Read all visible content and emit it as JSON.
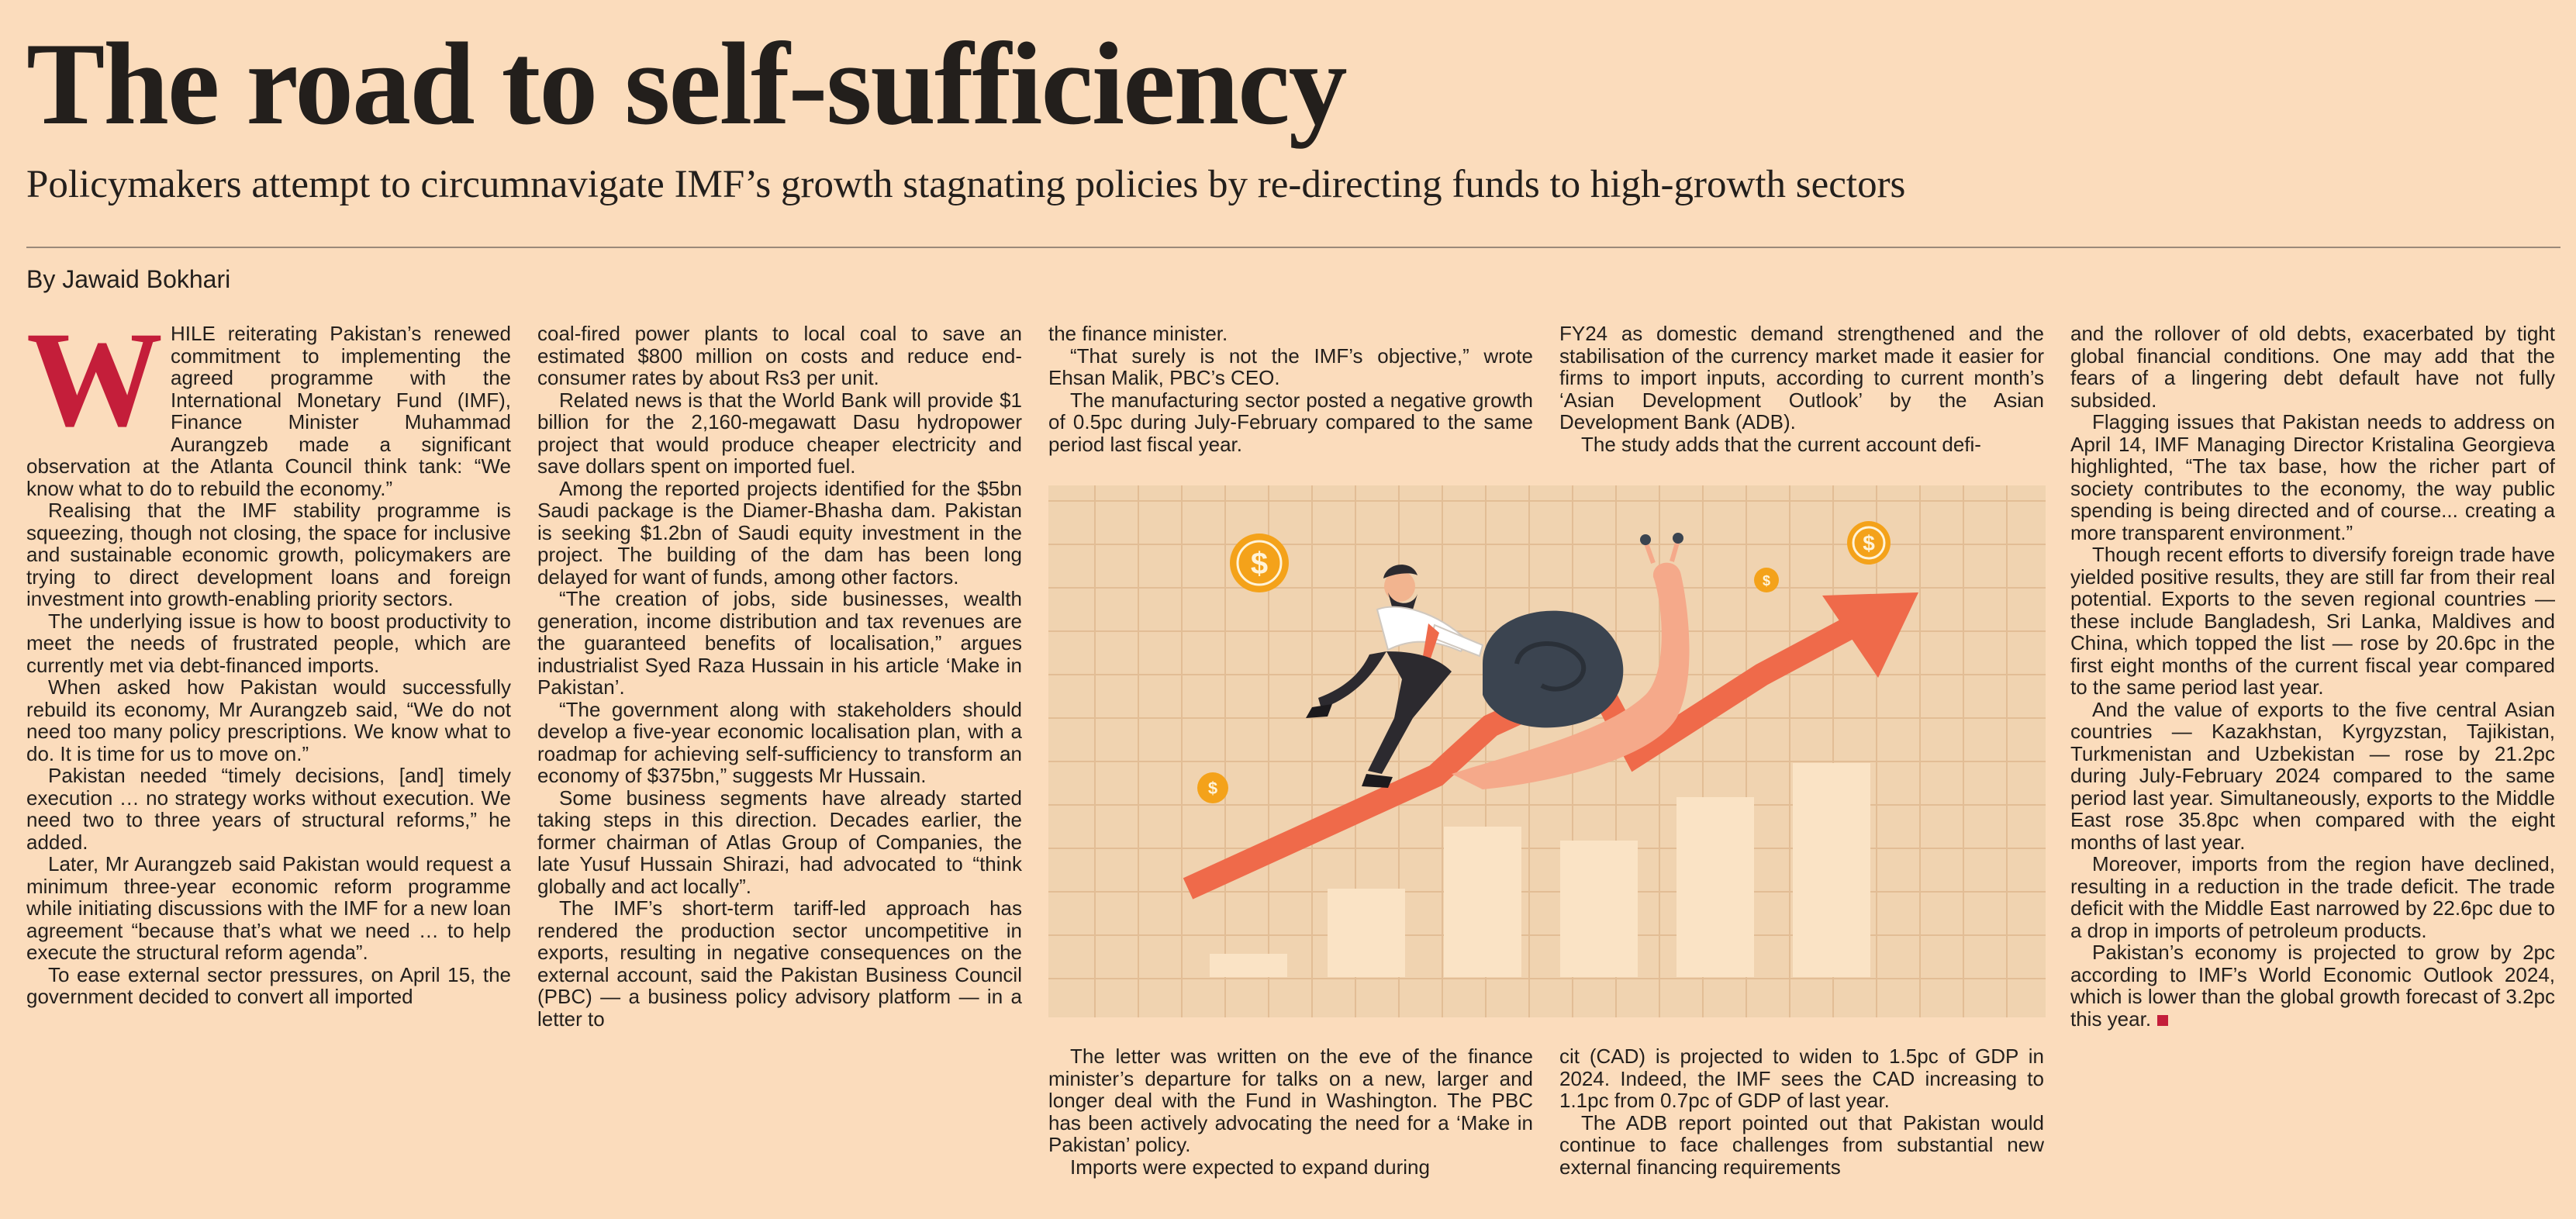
{
  "article": {
    "headline": "The road to self-sufficiency",
    "subheadline": "Policymakers attempt to circumnavigate IMF’s growth stagnating policies by re-directing funds to high-growth sectors",
    "byline": "By Jawaid Bokhari",
    "dropcap": "W"
  },
  "body": {
    "col1": [
      "HILE reiterating Pakistan’s renewed commitment to implementing the agreed programme with the International Monetary Fund (IMF), Finance Minister Muhammad Aurangzeb made a significant observation at the Atlanta Council think tank: “We know what to do to rebuild the economy.”",
      "Realising that the IMF stability programme is squeezing, though not closing, the space for inclusive and sustainable economic growth, policymakers are trying to direct development loans and foreign investment into growth-enabling priority sectors.",
      "The underlying issue is how to boost productivity to meet the needs of frustrated people, which are currently met via debt-financed imports.",
      "When asked how Pakistan would successfully rebuild its economy, Mr Aurangzeb said, “We do not need too many policy prescriptions. We know what to do. It is time for us to move on.”",
      "Pakistan needed “timely decisions, [and] timely execution … no strategy works without execution. We need two to three years of structural reforms,” he added.",
      "Later, Mr Aurangzeb said Pakistan would request a minimum three-year economic reform programme while initiating discussions with the IMF for a new loan agreement “because that’s what we need … to help execute the structural reform agenda”.",
      "To ease external sector pressures, on April 15, the government decided to convert all imported"
    ],
    "col2": [
      "coal-fired power plants to local coal to save an estimated $800 million on costs and reduce end-consumer rates by about Rs3 per unit.",
      "Related news is that the World Bank will provide $1 billion for the 2,160-megawatt Dasu hydropower project that would produce cheaper electricity and save dollars spent on imported fuel.",
      "Among the reported projects identified for the $5bn Saudi package is the Diamer-Bhasha dam. Pakistan is seeking $1.2bn of Saudi equity investment in the project. The building of the dam has been long delayed for want of funds, among other factors.",
      "“The creation of jobs, side businesses, wealth generation, income distribution and tax revenues are the guaranteed benefits of localisation,” argues industrialist Syed Raza Hussain in his article ‘Make in Pakistan’.",
      "“The government along with stakeholders should develop a five-year economic localisation plan, with a roadmap for achieving self-sufficiency to transform an economy of $375bn,” suggests Mr Hussain.",
      "Some business segments have already started taking steps in this direction. Decades earlier, the former chairman of Atlas Group of Companies, the late Yusuf Hussain Shirazi, had advocated to “think globally and act locally”.",
      "The IMF’s short-term tariff-led approach has rendered the production sector uncompetitive in exports, resulting in negative consequences on the external account, said the Pakistan Business Council (PBC) — a business policy advisory platform — in a letter to"
    ],
    "col3_top": [
      "the finance minister.",
      "“That surely is not the IMF’s objective,” wrote Ehsan Malik, PBC’s CEO.",
      "The manufacturing sector posted a negative growth of 0.5pc during July-February compared to the same period last fiscal year."
    ],
    "col3_bottom": [
      "The letter was written on the eve of the finance minister’s departure for talks on a new, larger and longer deal with the Fund in Washington. The PBC has been actively advocating the need for a ‘Make in Pakistan’ policy.",
      "Imports were expected to expand during"
    ],
    "col4_top": [
      "FY24 as domestic demand strengthened and the stabilisation of the currency market made it easier for firms to import inputs, according to current month’s ‘Asian Development Outlook’ by the Asian Development Bank (ADB).",
      "The study adds that the current account defi-"
    ],
    "col4_bottom": [
      "cit (CAD) is projected to widen to 1.5pc of GDP in 2024. Indeed, the IMF sees the CAD increasing to 1.1pc from 0.7pc of GDP of last year.",
      "The ADB report pointed out that Pakistan would continue to face challenges from substantial new external financing requirements"
    ],
    "col5": [
      "and the rollover of old debts, exacerbated by tight global financial conditions. One may add that the fears of a lingering debt default have not fully subsided.",
      "Flagging issues that Pakistan needs to address on April 14, IMF Managing Director Kristalina Georgieva highlighted, “The tax base, how the richer part of society contributes to the economy, the way public spending is being directed and of course... creating a more transparent environment.”",
      "Though recent efforts to diversify foreign trade have yielded positive results, they are still far from their real potential. Exports to the seven regional countries — these include Bangladesh, Sri Lanka, Maldives and China, which topped the list — rose by 20.6pc in the first eight months of the current fiscal year compared to the same period last year.",
      "And the value of exports to the five central Asian countries — Kazakhstan, Kyrgyzstan, Tajikistan, Turkmenistan and Uzbekistan — rose by 21.2pc during July-February 2024 compared to the same period last year. Simultaneously, exports to the Middle East rose 35.8pc when compared with the eight months of last year.",
      "Moreover, imports from the region have declined, resulting in a reduction in the trade deficit. The trade deficit with the Middle East narrowed by 22.6pc due to a drop in imports of petroleum products.",
      "Pakistan’s economy is projected to grow by 2pc according to IMF’s World Economic Outlook 2024, which is lower than the global growth forecast of 3.2pc this year."
    ]
  },
  "illustration": {
    "coin_symbol": "$",
    "colors": {
      "panel": "#f0d3b0",
      "grid": "#e2bd95",
      "bars": "#fae3c5",
      "arrow": "#ef6a4a",
      "coin": "#f4a21a",
      "snail_body": "#f5a98a",
      "snail_shell": "#3b4450"
    }
  }
}
